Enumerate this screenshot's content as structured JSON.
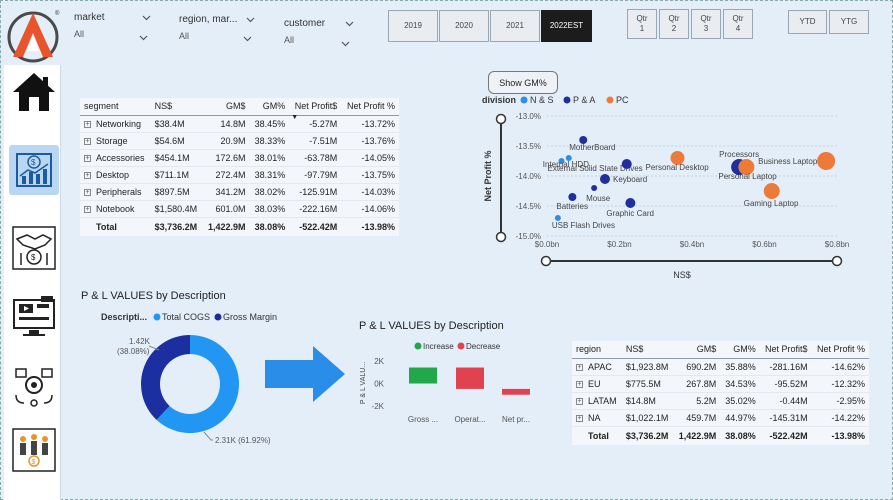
{
  "slicers": {
    "market": {
      "label": "market",
      "value": "All"
    },
    "region": {
      "label": "region, mar...",
      "value": "All"
    },
    "customer": {
      "label": "customer",
      "value": "All"
    }
  },
  "years": [
    "2019",
    "2020",
    "2021",
    "2022EST"
  ],
  "selected_year": "2022EST",
  "quarters": [
    {
      "line1": "Qtr",
      "line2": "1"
    },
    {
      "line1": "Qtr",
      "line2": "2"
    },
    {
      "line1": "Qtr",
      "line2": "3"
    },
    {
      "line1": "Qtr",
      "line2": "4"
    }
  ],
  "period_buttons": [
    "YTD",
    "YTG"
  ],
  "segment_table": {
    "headers": [
      "segment",
      "NS$",
      "GM$",
      "GM%",
      "Net Profit$",
      "Net Profit %"
    ],
    "rows": [
      [
        "Networking",
        "$38.4M",
        "14.8M",
        "38.45%",
        "-5.27M",
        "-13.72%"
      ],
      [
        "Storage",
        "$54.6M",
        "20.9M",
        "38.33%",
        "-7.51M",
        "-13.76%"
      ],
      [
        "Accessories",
        "$454.1M",
        "172.6M",
        "38.01%",
        "-63.78M",
        "-14.05%"
      ],
      [
        "Desktop",
        "$711.1M",
        "272.4M",
        "38.31%",
        "-97.79M",
        "-13.75%"
      ],
      [
        "Peripherals",
        "$897.5M",
        "341.2M",
        "38.02%",
        "-125.91M",
        "-14.03%"
      ],
      [
        "Notebook",
        "$1,580.4M",
        "601.0M",
        "38.03%",
        "-222.16M",
        "-14.06%"
      ]
    ],
    "total": [
      "Total",
      "$3,736.2M",
      "1,422.9M",
      "38.08%",
      "-522.42M",
      "-13.98%"
    ]
  },
  "region_table": {
    "headers": [
      "region",
      "NS$",
      "GM$",
      "GM%",
      "Net Profit$",
      "Net Profit %"
    ],
    "rows": [
      [
        "APAC",
        "$1,923.8M",
        "690.2M",
        "35.88%",
        "-281.16M",
        "-14.62%"
      ],
      [
        "EU",
        "$775.5M",
        "267.8M",
        "34.53%",
        "-95.52M",
        "-12.32%"
      ],
      [
        "LATAM",
        "$14.8M",
        "5.2M",
        "35.02%",
        "-0.44M",
        "-2.95%"
      ],
      [
        "NA",
        "$1,022.1M",
        "459.7M",
        "44.97%",
        "-145.31M",
        "-14.22%"
      ]
    ],
    "total": [
      "Total",
      "$3,736.2M",
      "1,422.9M",
      "38.08%",
      "-522.42M",
      "-13.98%"
    ]
  },
  "show_gm_label": "Show GM%",
  "colors": {
    "ns": "#2e8fe6",
    "pa": "#1f2f9e",
    "pc": "#ee7a3a",
    "increase": "#21a84a",
    "decrease": "#e0434f",
    "total_cogs": "#2196f3",
    "gross_margin": "#1c2fa0",
    "arrow": "#2a8ee8"
  },
  "icons": [
    "home-icon",
    "dollar-chart-icon",
    "handshake-money-icon",
    "monitor-media-icon",
    "delivery-gear-icon",
    "people-money-icon"
  ],
  "chart_data": [
    {
      "type": "scatter",
      "legend_title": "division",
      "legend": [
        "N & S",
        "P & A",
        "PC"
      ],
      "legend_placement": "top-left",
      "xlabel": "NS$",
      "ylabel": "Net Profit %",
      "xlim": [
        0,
        0.8
      ],
      "ylim": [
        -15.0,
        -13.0
      ],
      "x_ticks": [
        "$0.0bn",
        "$0.2bn",
        "$0.4bn",
        "$0.6bn",
        "$0.8bn"
      ],
      "y_ticks": [
        "-13.0%",
        "-13.5%",
        "-14.0%",
        "-14.5%",
        "-15.0%"
      ],
      "grid": true,
      "points": [
        {
          "label": "MotherBoard",
          "division": "P & A",
          "x": 0.1,
          "y": -13.4,
          "size": 4
        },
        {
          "label": "External Solid State Drives",
          "division": "N & S",
          "x": 0.04,
          "y": -13.75,
          "size": 3
        },
        {
          "label": "",
          "division": "N & S",
          "x": 0.06,
          "y": -13.7,
          "size": 3
        },
        {
          "label": "Internal HDD",
          "division": "P & A",
          "x": 0.22,
          "y": -13.8,
          "size": 5
        },
        {
          "label": "Keyboard",
          "division": "P & A",
          "x": 0.16,
          "y": -14.05,
          "size": 5
        },
        {
          "label": "Mouse",
          "division": "P & A",
          "x": 0.13,
          "y": -14.2,
          "size": 3
        },
        {
          "label": "Batteries",
          "division": "P & A",
          "x": 0.07,
          "y": -14.35,
          "size": 4
        },
        {
          "label": "Graphic Card",
          "division": "P & A",
          "x": 0.23,
          "y": -14.45,
          "size": 5
        },
        {
          "label": "USB Flash Drives",
          "division": "N & S",
          "x": 0.03,
          "y": -14.7,
          "size": 3
        },
        {
          "label": "Personal Desktop",
          "division": "PC",
          "x": 0.36,
          "y": -13.7,
          "size": 7
        },
        {
          "label": "Processors",
          "division": "P & A",
          "x": 0.53,
          "y": -13.85,
          "size": 8
        },
        {
          "label": "Personal Laptop",
          "division": "PC",
          "x": 0.55,
          "y": -13.85,
          "size": 8
        },
        {
          "label": "Business Laptop",
          "division": "PC",
          "x": 0.77,
          "y": -13.75,
          "size": 9
        },
        {
          "label": "Gaming Laptop",
          "division": "PC",
          "x": 0.62,
          "y": -14.25,
          "size": 8
        }
      ]
    },
    {
      "type": "pie",
      "title": "P & L VALUES by Description",
      "legend_title": "Descripti...",
      "legend": [
        "Total COGS",
        "Gross Margin"
      ],
      "slices": [
        {
          "name": "Total COGS",
          "value": 2310,
          "label": "2.31K (61.92%)"
        },
        {
          "name": "Gross Margin",
          "value": 1420,
          "label": "1.42K (38.08%)"
        }
      ]
    },
    {
      "type": "bar",
      "subtype": "waterfall",
      "title": "P & L VALUES by Description",
      "legend": [
        "Increase",
        "Decrease"
      ],
      "ylabel": "P & L VALU...",
      "ylim": [
        -2000,
        2000
      ],
      "y_ticks": [
        "2K",
        "0K",
        "-2K"
      ],
      "categories": [
        "Gross ...",
        "Operat...",
        "Net pr..."
      ],
      "values": [
        1420,
        -1900,
        -520
      ]
    }
  ]
}
